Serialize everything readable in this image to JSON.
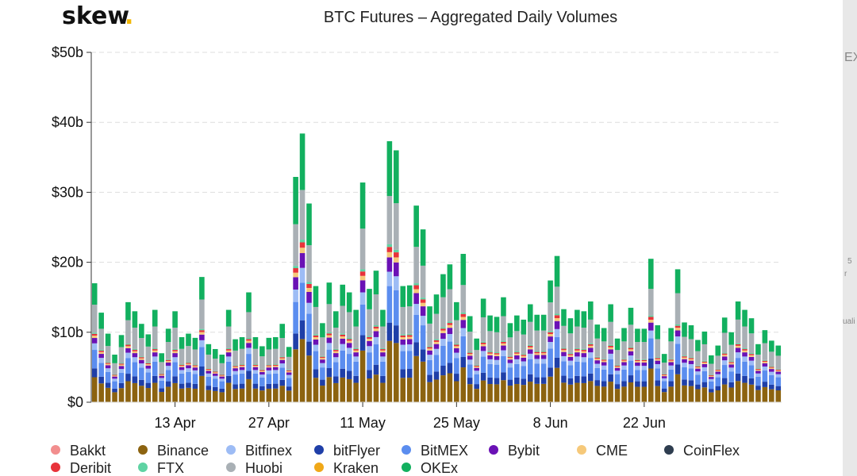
{
  "brand": {
    "name": "skew",
    "dot": "."
  },
  "side_fragments": {
    "top": "EX",
    "mid1": "5",
    "mid2": "r",
    "bottom": "uali"
  },
  "chart_data": {
    "type": "bar",
    "stacked": true,
    "title": "BTC Futures – Aggregated Daily Volumes",
    "xlabel": "",
    "ylabel": "",
    "ylim": [
      0,
      50
    ],
    "yticks": [
      0,
      10,
      20,
      30,
      40,
      50
    ],
    "ytick_labels": [
      "$0",
      "$10b",
      "$20b",
      "$30b",
      "$40b",
      "$50b"
    ],
    "x_tick_labels": [
      {
        "index": 12,
        "label": "13 Apr"
      },
      {
        "index": 26,
        "label": "27 Apr"
      },
      {
        "index": 40,
        "label": "11 May"
      },
      {
        "index": 54,
        "label": "25 May"
      },
      {
        "index": 68,
        "label": "8 Jun"
      },
      {
        "index": 82,
        "label": "22 Jun"
      }
    ],
    "legend": [
      "Bakkt",
      "Binance",
      "Bitfinex",
      "bitFlyer",
      "BitMEX",
      "Bybit",
      "CME",
      "CoinFlex",
      "Deribit",
      "FTX",
      "Huobi",
      "Kraken",
      "OKEx"
    ],
    "series_colors": {
      "Bakkt": "#f28e8e",
      "Binance": "#8c6310",
      "Bitfinex": "#9dbcf5",
      "bitFlyer": "#1f3fa8",
      "BitMEX": "#5b8def",
      "Bybit": "#6a11b5",
      "CME": "#f6c97a",
      "CoinFlex": "#2e3d4f",
      "Deribit": "#e8333a",
      "FTX": "#5fd3a3",
      "Huobi": "#a9b0b5",
      "Kraken": "#f0a818",
      "OKEx": "#12b05f"
    },
    "totals": [
      17.0,
      12.8,
      9.8,
      6.8,
      9.6,
      14.3,
      13.0,
      11.2,
      9.7,
      13.2,
      7.0,
      10.5,
      13.0,
      9.3,
      9.8,
      9.2,
      17.9,
      8.3,
      7.6,
      6.8,
      13.2,
      9.0,
      9.3,
      15.7,
      9.3,
      8.0,
      9.2,
      9.3,
      11.2,
      7.9,
      32.2,
      38.4,
      28.4,
      16.6,
      11.3,
      17.1,
      13.0,
      16.8,
      15.7,
      13.2,
      31.4,
      16.2,
      18.8,
      13.2,
      37.3,
      36.0,
      16.6,
      16.7,
      28.1,
      24.7,
      13.7,
      15.4,
      18.3,
      19.7,
      14.3,
      21.2,
      12.3,
      9.1,
      14.8,
      12.4,
      12.2,
      15.0,
      11.3,
      12.4,
      11.8,
      14.0,
      12.5,
      12.5,
      17.4,
      20.9,
      13.3,
      12.0,
      13.2,
      13.0,
      14.4,
      11.1,
      10.6,
      14.0,
      9.1,
      10.6,
      13.5,
      10.5,
      10.5,
      20.5,
      11.0,
      6.9,
      10.6,
      19.0,
      11.4,
      11.0,
      8.9,
      10.1,
      6.7,
      8.1,
      12.1,
      10.0,
      14.4,
      13.2,
      12.0,
      8.3,
      10.3,
      8.8,
      8.1
    ]
  }
}
